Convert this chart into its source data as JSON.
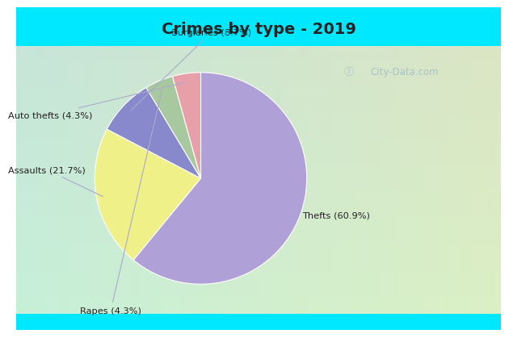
{
  "title": "Crimes by type - 2019",
  "labels": [
    "Thefts",
    "Assaults",
    "Burglaries",
    "Rapes",
    "Auto thefts"
  ],
  "display_labels": [
    "Thefts (60.9%)",
    "Assaults (21.7%)",
    "Burglaries (8.7%)",
    "Rapes (4.3%)",
    "Auto thefts (4.3%)"
  ],
  "values": [
    60.9,
    21.7,
    8.7,
    4.3,
    4.3
  ],
  "colors": [
    "#b0a0d8",
    "#f0f088",
    "#8888cc",
    "#a8c8a0",
    "#e8a0a8"
  ],
  "bg_top_color": "#00e8ff",
  "bg_main_top": "#c8e8e0",
  "bg_main_bottom": "#d8f0d8",
  "title_color": "#222222",
  "label_color": "#222222",
  "watermark": "City-Data.com",
  "startangle": 90,
  "label_annotations": {
    "Thefts (60.9%)": [
      1.28,
      -0.35
    ],
    "Assaults (21.7%)": [
      -1.45,
      0.08
    ],
    "Burglaries (8.7%)": [
      0.1,
      1.38
    ],
    "Rapes (4.3%)": [
      -0.85,
      -1.25
    ],
    "Auto thefts (4.3%)": [
      -1.42,
      0.6
    ]
  }
}
